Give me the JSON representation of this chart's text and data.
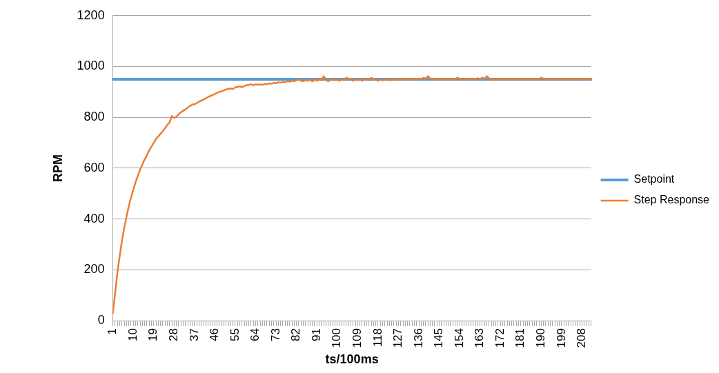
{
  "chart_data": {
    "type": "line",
    "xlabel": "ts/100ms",
    "ylabel": "RPM",
    "ylim": [
      0,
      1200
    ],
    "yticks": [
      0,
      200,
      400,
      600,
      800,
      1000,
      1200
    ],
    "grid": "y",
    "legend": "right",
    "marker": "none",
    "line_style": "solid",
    "categories": [
      "1",
      null,
      null,
      null,
      null,
      null,
      null,
      null,
      null,
      "10",
      null,
      null,
      null,
      null,
      null,
      null,
      null,
      null,
      "19",
      null,
      null,
      null,
      null,
      null,
      null,
      null,
      null,
      "28",
      null,
      null,
      null,
      null,
      null,
      null,
      null,
      null,
      "37",
      null,
      null,
      null,
      null,
      null,
      null,
      null,
      null,
      "46",
      null,
      null,
      null,
      null,
      null,
      null,
      null,
      null,
      "55",
      null,
      null,
      null,
      null,
      null,
      null,
      null,
      null,
      "64",
      null,
      null,
      null,
      null,
      null,
      null,
      null,
      null,
      "73",
      null,
      null,
      null,
      null,
      null,
      null,
      null,
      null,
      "82",
      null,
      null,
      null,
      null,
      null,
      null,
      null,
      null,
      "91",
      null,
      null,
      null,
      null,
      null,
      null,
      null,
      null,
      "100",
      null,
      null,
      null,
      null,
      null,
      null,
      null,
      null,
      "109",
      null,
      null,
      null,
      null,
      null,
      null,
      null,
      null,
      "118",
      null,
      null,
      null,
      null,
      null,
      null,
      null,
      null,
      "127",
      null,
      null,
      null,
      null,
      null,
      null,
      null,
      null,
      "136",
      null,
      null,
      null,
      null,
      null,
      null,
      null,
      null,
      "145",
      null,
      null,
      null,
      null,
      null,
      null,
      null,
      null,
      "154",
      null,
      null,
      null,
      null,
      null,
      null,
      null,
      null,
      "163",
      null,
      null,
      null,
      null,
      null,
      null,
      null,
      null,
      "172",
      null,
      null,
      null,
      null,
      null,
      null,
      null,
      null,
      "181",
      null,
      null,
      null,
      null,
      null,
      null,
      null,
      null,
      "190",
      null,
      null,
      null,
      null,
      null,
      null,
      null,
      null,
      "199",
      null,
      null,
      null,
      null,
      null,
      null,
      null,
      null,
      "208",
      null,
      null,
      null,
      null
    ],
    "series": [
      {
        "name": "Setpoint",
        "color": "#5b9bd5",
        "values": [
          950,
          950,
          950,
          950,
          950,
          950,
          950,
          950,
          950,
          950,
          950,
          950,
          950,
          950,
          950,
          950,
          950,
          950,
          950,
          950,
          950,
          950,
          950,
          950,
          950,
          950,
          950,
          950,
          950,
          950,
          950,
          950,
          950,
          950,
          950,
          950,
          950,
          950,
          950,
          950,
          950,
          950,
          950,
          950,
          950,
          950,
          950,
          950,
          950,
          950,
          950,
          950,
          950,
          950,
          950,
          950,
          950,
          950,
          950,
          950,
          950,
          950,
          950,
          950,
          950,
          950,
          950,
          950,
          950,
          950,
          950,
          950,
          950,
          950,
          950,
          950,
          950,
          950,
          950,
          950,
          950,
          950,
          950,
          950,
          950,
          950,
          950,
          950,
          950,
          950,
          950,
          950,
          950,
          950,
          950,
          950,
          950,
          950,
          950,
          950,
          950,
          950,
          950,
          950,
          950,
          950,
          950,
          950,
          950,
          950,
          950,
          950,
          950,
          950,
          950,
          950,
          950,
          950,
          950,
          950,
          950,
          950,
          950,
          950,
          950,
          950,
          950,
          950,
          950,
          950,
          950,
          950,
          950,
          950,
          950,
          950,
          950,
          950,
          950,
          950,
          950,
          950,
          950,
          950,
          950,
          950,
          950,
          950,
          950,
          950,
          950,
          950,
          950,
          950,
          950,
          950,
          950,
          950,
          950,
          950,
          950,
          950,
          950,
          950,
          950,
          950,
          950,
          950,
          950,
          950,
          950,
          950,
          950,
          950,
          950,
          950,
          950,
          950,
          950,
          950,
          950,
          950,
          950,
          950,
          950,
          950,
          950,
          950,
          950,
          950,
          950,
          950,
          950,
          950,
          950,
          950,
          950,
          950,
          950,
          950,
          950,
          950,
          950,
          950,
          950,
          950,
          950,
          950,
          950,
          950,
          950,
          950
        ]
      },
      {
        "name": "Step Response",
        "color": "#ed7d31",
        "values": [
          30,
          110,
          190,
          255,
          315,
          365,
          410,
          450,
          485,
          515,
          545,
          570,
          595,
          615,
          635,
          650,
          670,
          685,
          700,
          715,
          725,
          735,
          745,
          757,
          770,
          780,
          805,
          798,
          802,
          812,
          820,
          826,
          832,
          838,
          845,
          850,
          852,
          856,
          862,
          866,
          870,
          875,
          880,
          884,
          888,
          892,
          897,
          900,
          903,
          906,
          910,
          912,
          914,
          912,
          918,
          920,
          922,
          918,
          924,
          926,
          928,
          930,
          926,
          930,
          928,
          930,
          928,
          932,
          930,
          934,
          932,
          936,
          934,
          938,
          936,
          940,
          938,
          942,
          940,
          944,
          942,
          946,
          950,
          944,
          942,
          946,
          944,
          948,
          942,
          948,
          944,
          950,
          946,
          962,
          948,
          942,
          948,
          952,
          946,
          948,
          944,
          950,
          946,
          956,
          952,
          948,
          944,
          950,
          946,
          950,
          944,
          948,
          952,
          946,
          956,
          950,
          948,
          944,
          950,
          946,
          948,
          950,
          946,
          948,
          950,
          948,
          950,
          952,
          950,
          948,
          952,
          950,
          952,
          948,
          950,
          952,
          950,
          956,
          952,
          962,
          954,
          948,
          950,
          952,
          950,
          952,
          948,
          950,
          952,
          950,
          948,
          950,
          956,
          952,
          950,
          948,
          952,
          950,
          948,
          952,
          950,
          954,
          950,
          956,
          952,
          962,
          954,
          948,
          950,
          948,
          952,
          950,
          948,
          952,
          950,
          948,
          950,
          952,
          950,
          948,
          950,
          952,
          950,
          948,
          950,
          952,
          950,
          948,
          950,
          956,
          952,
          950,
          948,
          950,
          952,
          950,
          948,
          950,
          952,
          950,
          948,
          950,
          952,
          950,
          948,
          950,
          952,
          950,
          948,
          950,
          952,
          950
        ]
      }
    ]
  }
}
